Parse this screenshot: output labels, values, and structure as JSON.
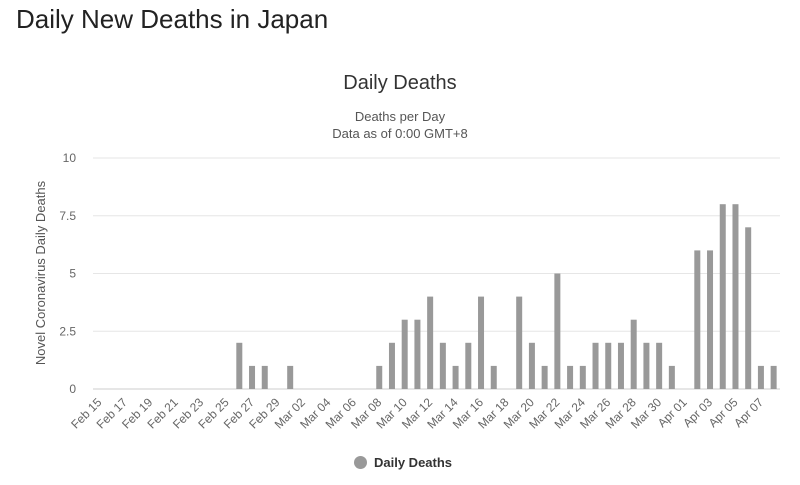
{
  "page": {
    "heading": "Daily New Deaths in Japan"
  },
  "chart_data": {
    "type": "bar",
    "title": "Daily Deaths",
    "subtitle": [
      "Deaths per Day",
      "Data as of 0:00 GMT+8"
    ],
    "xlabel": "",
    "ylabel": "Novel Coronavirus Daily Deaths",
    "ylim": [
      0,
      10
    ],
    "yticks": [
      0,
      2.5,
      5,
      7.5,
      10
    ],
    "ytick_labels": [
      "0",
      "2.5",
      "5",
      "7.5",
      "10"
    ],
    "grid": true,
    "legend_position": "bottom",
    "categories": [
      "Feb 15",
      "Feb 16",
      "Feb 17",
      "Feb 18",
      "Feb 19",
      "Feb 20",
      "Feb 21",
      "Feb 22",
      "Feb 23",
      "Feb 24",
      "Feb 25",
      "Feb 26",
      "Feb 27",
      "Feb 28",
      "Feb 29",
      "Mar 01",
      "Mar 02",
      "Mar 03",
      "Mar 04",
      "Mar 05",
      "Mar 06",
      "Mar 07",
      "Mar 08",
      "Mar 09",
      "Mar 10",
      "Mar 11",
      "Mar 12",
      "Mar 13",
      "Mar 14",
      "Mar 15",
      "Mar 16",
      "Mar 17",
      "Mar 18",
      "Mar 19",
      "Mar 20",
      "Mar 21",
      "Mar 22",
      "Mar 23",
      "Mar 24",
      "Mar 25",
      "Mar 26",
      "Mar 27",
      "Mar 28",
      "Mar 29",
      "Mar 30",
      "Mar 31",
      "Apr 01",
      "Apr 02",
      "Apr 03",
      "Apr 04",
      "Apr 05",
      "Apr 06",
      "Apr 07",
      "Apr 08"
    ],
    "xtick_labels": [
      "Feb 15",
      "Feb 17",
      "Feb 19",
      "Feb 21",
      "Feb 23",
      "Feb 25",
      "Feb 27",
      "Feb 29",
      "Mar 02",
      "Mar 04",
      "Mar 06",
      "Mar 08",
      "Mar 10",
      "Mar 12",
      "Mar 14",
      "Mar 16",
      "Mar 18",
      "Mar 20",
      "Mar 22",
      "Mar 24",
      "Mar 26",
      "Mar 28",
      "Mar 30",
      "Apr 01",
      "Apr 03",
      "Apr 05",
      "Apr 07"
    ],
    "series": [
      {
        "name": "Daily Deaths",
        "color": "#999999",
        "values": [
          0,
          0,
          0,
          0,
          0,
          0,
          0,
          0,
          0,
          0,
          0,
          2,
          1,
          1,
          0,
          1,
          0,
          0,
          0,
          0,
          0,
          0,
          1,
          2,
          3,
          3,
          4,
          2,
          1,
          2,
          4,
          1,
          0,
          4,
          2,
          1,
          5,
          1,
          1,
          2,
          2,
          2,
          3,
          2,
          2,
          1,
          0,
          6,
          6,
          8,
          8,
          7,
          1,
          1
        ]
      }
    ]
  }
}
